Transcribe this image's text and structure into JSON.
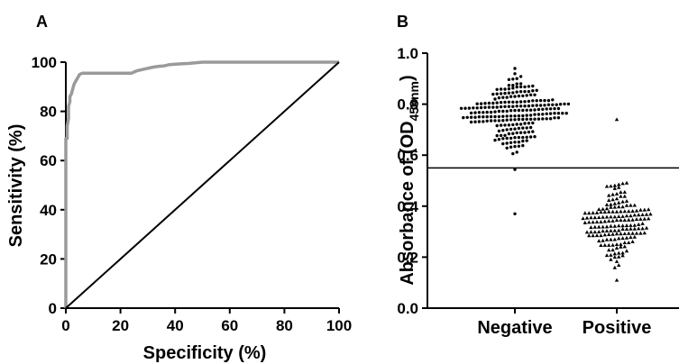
{
  "chart_data": [
    {
      "panel": "A",
      "type": "line",
      "xlabel": "Specificity (%)",
      "ylabel": "Sensitivity (%)",
      "xlim": [
        0,
        100
      ],
      "ylim": [
        0,
        100
      ],
      "xticks": [
        "0",
        "20",
        "40",
        "60",
        "80",
        "100"
      ],
      "yticks": [
        "0",
        "20",
        "40",
        "60",
        "80",
        "100"
      ],
      "series": [
        {
          "color": "#9a9a9a",
          "x": [
            0,
            0,
            0,
            0.5,
            0.5,
            1,
            1,
            1.5,
            1.5,
            2,
            2.5,
            3,
            3.5,
            4,
            5,
            6,
            8,
            10,
            14,
            18,
            22,
            24,
            25,
            26,
            28,
            30,
            32,
            34,
            36,
            38,
            40,
            45,
            50,
            60,
            70,
            80,
            90,
            100
          ],
          "y": [
            0,
            25,
            69,
            69,
            74,
            77,
            82,
            84,
            86,
            87,
            89,
            91,
            92,
            93,
            95,
            95.5,
            95.5,
            95.5,
            95.5,
            95.5,
            95.5,
            95.5,
            96,
            96.5,
            97,
            97.5,
            98,
            98.3,
            98.5,
            99,
            99.2,
            99.5,
            100,
            100,
            100,
            100,
            100,
            100
          ]
        },
        {
          "color": "#000000",
          "x": [
            0,
            100
          ],
          "y": [
            0,
            100
          ]
        }
      ],
      "grid": false
    },
    {
      "panel": "B",
      "type": "scatter",
      "categories": [
        "Negative",
        "Positive"
      ],
      "ylabel": "Absorbance of (OD",
      "ylabel_sub": "450nm",
      "ylabel_close": ")",
      "ylim": [
        0.0,
        1.0
      ],
      "yticks": [
        "0.0",
        "0.2",
        "0.4",
        "0.6",
        "0.8",
        "1.0"
      ],
      "cutoff": 0.55,
      "groups": [
        {
          "category": "Negative",
          "marker": "circle",
          "n": 220,
          "min": 0.37,
          "max": 0.94,
          "center": 0.76,
          "spread": 0.085
        },
        {
          "category": "Positive",
          "marker": "triangle",
          "n": 170,
          "min": 0.11,
          "max": 0.74,
          "center": 0.33,
          "spread": 0.095
        }
      ],
      "grid": false
    }
  ]
}
